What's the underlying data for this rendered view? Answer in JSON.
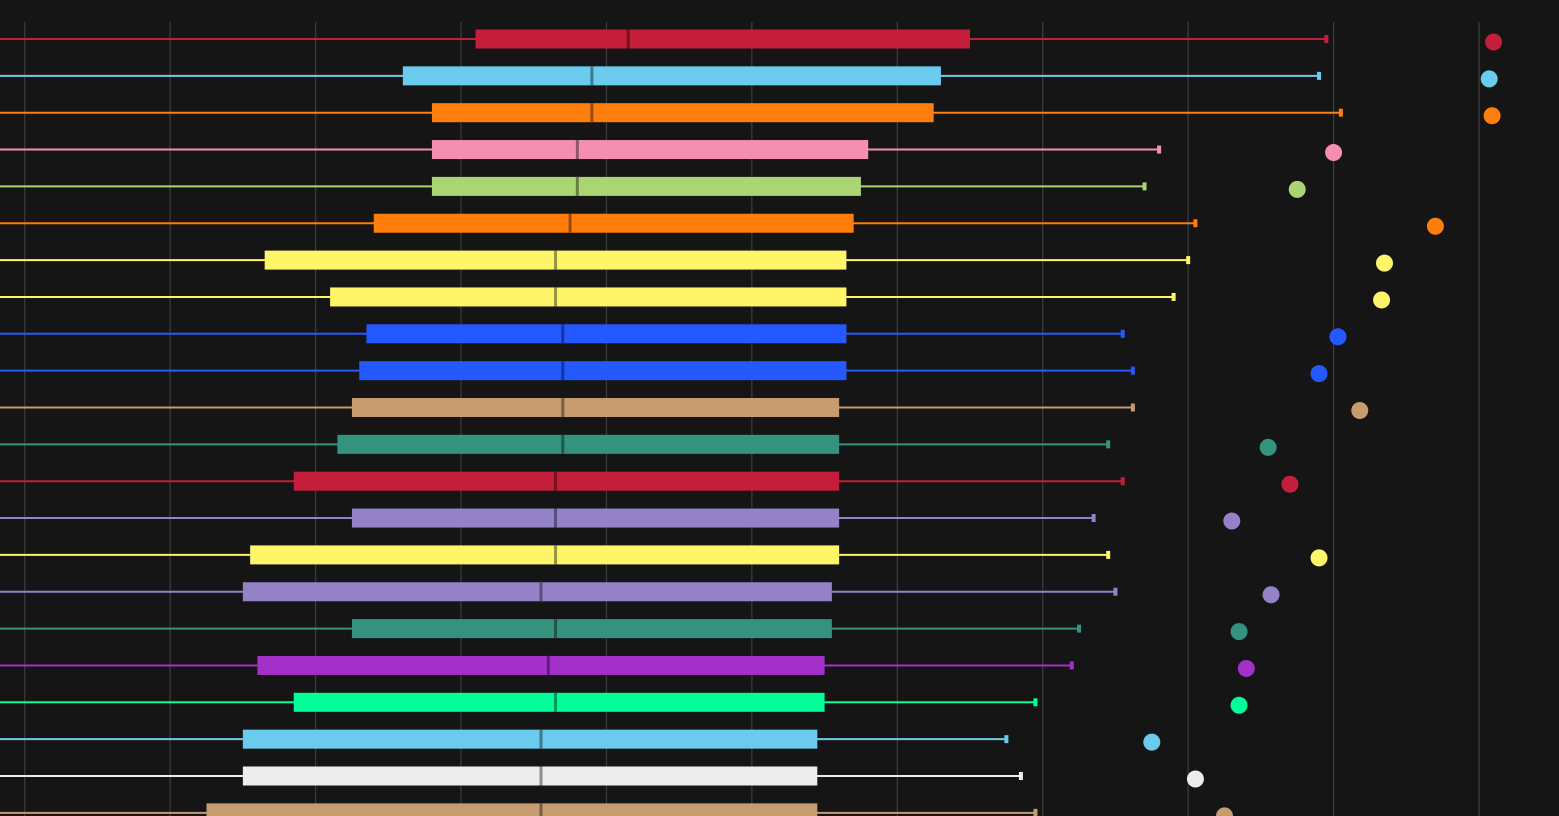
{
  "chart_data": {
    "type": "boxplot",
    "orientation": "horizontal",
    "title": "",
    "xlabel": "",
    "ylabel": "",
    "xlim": [
      -0.17,
      10.55
    ],
    "grid": "vertical",
    "background": "#151515",
    "tick_labels_visible": false,
    "series": [
      {
        "color": "#C41E3A",
        "whisker_low": -0.4,
        "q1": 3.1,
        "median": 4.15,
        "q3": 6.5,
        "whisker_high": 8.95,
        "outlier": 10.1
      },
      {
        "color": "#6BCBEF",
        "whisker_low": -0.4,
        "q1": 2.6,
        "median": 3.9,
        "q3": 6.3,
        "whisker_high": 8.9,
        "outlier": 10.07
      },
      {
        "color": "#FF7F0E",
        "whisker_low": -0.4,
        "q1": 2.8,
        "median": 3.9,
        "q3": 6.25,
        "whisker_high": 9.05,
        "outlier": 10.09
      },
      {
        "color": "#F48FB1",
        "whisker_low": -0.4,
        "q1": 2.8,
        "median": 3.8,
        "q3": 5.8,
        "whisker_high": 7.8,
        "outlier": 9.0
      },
      {
        "color": "#ABD473",
        "whisker_low": -0.4,
        "q1": 2.8,
        "median": 3.8,
        "q3": 5.75,
        "whisker_high": 7.7,
        "outlier": 8.75
      },
      {
        "color": "#FF7D0A",
        "whisker_low": -0.4,
        "q1": 2.4,
        "median": 3.75,
        "q3": 5.7,
        "whisker_high": 8.05,
        "outlier": 9.7
      },
      {
        "color": "#FFF569",
        "whisker_low": -0.4,
        "q1": 1.65,
        "median": 3.65,
        "q3": 5.65,
        "whisker_high": 8.0,
        "outlier": 9.35
      },
      {
        "color": "#FFF569",
        "whisker_low": -0.4,
        "q1": 2.1,
        "median": 3.65,
        "q3": 5.65,
        "whisker_high": 7.9,
        "outlier": 9.33
      },
      {
        "color": "#2359FF",
        "whisker_low": -0.4,
        "q1": 2.35,
        "median": 3.7,
        "q3": 5.65,
        "whisker_high": 7.55,
        "outlier": 9.03
      },
      {
        "color": "#2359FF",
        "whisker_low": -0.4,
        "q1": 2.3,
        "median": 3.7,
        "q3": 5.65,
        "whisker_high": 7.62,
        "outlier": 8.9
      },
      {
        "color": "#C69B6D",
        "whisker_low": -0.4,
        "q1": 2.25,
        "median": 3.7,
        "q3": 5.6,
        "whisker_high": 7.62,
        "outlier": 9.18
      },
      {
        "color": "#33937F",
        "whisker_low": -0.4,
        "q1": 2.15,
        "median": 3.7,
        "q3": 5.6,
        "whisker_high": 7.45,
        "outlier": 8.55
      },
      {
        "color": "#C41E3A",
        "whisker_low": -0.4,
        "q1": 1.85,
        "median": 3.65,
        "q3": 5.6,
        "whisker_high": 7.55,
        "outlier": 8.7
      },
      {
        "color": "#9482C9",
        "whisker_low": -0.4,
        "q1": 2.25,
        "median": 3.65,
        "q3": 5.6,
        "whisker_high": 7.35,
        "outlier": 8.3
      },
      {
        "color": "#FFF569",
        "whisker_low": -0.4,
        "q1": 1.55,
        "median": 3.65,
        "q3": 5.6,
        "whisker_high": 7.45,
        "outlier": 8.9
      },
      {
        "color": "#9482C9",
        "whisker_low": -0.4,
        "q1": 1.5,
        "median": 3.55,
        "q3": 5.55,
        "whisker_high": 7.5,
        "outlier": 8.57
      },
      {
        "color": "#33937F",
        "whisker_low": -0.4,
        "q1": 2.25,
        "median": 3.65,
        "q3": 5.55,
        "whisker_high": 7.25,
        "outlier": 8.35
      },
      {
        "color": "#A330C9",
        "whisker_low": -0.4,
        "q1": 1.6,
        "median": 3.6,
        "q3": 5.5,
        "whisker_high": 7.2,
        "outlier": 8.4
      },
      {
        "color": "#00FF98",
        "whisker_low": -0.4,
        "q1": 1.85,
        "median": 3.65,
        "q3": 5.5,
        "whisker_high": 6.95,
        "outlier": 8.35
      },
      {
        "color": "#6BCBEF",
        "whisker_low": -0.4,
        "q1": 1.5,
        "median": 3.55,
        "q3": 5.45,
        "whisker_high": 6.75,
        "outlier": 7.75
      },
      {
        "color": "#EDEDED",
        "whisker_low": -0.4,
        "q1": 1.5,
        "median": 3.55,
        "q3": 5.45,
        "whisker_high": 6.85,
        "outlier": 8.05
      },
      {
        "color": "#C69B6D",
        "whisker_low": -0.4,
        "q1": 1.25,
        "median": 3.55,
        "q3": 5.45,
        "whisker_high": 6.95,
        "outlier": 8.25
      }
    ]
  }
}
